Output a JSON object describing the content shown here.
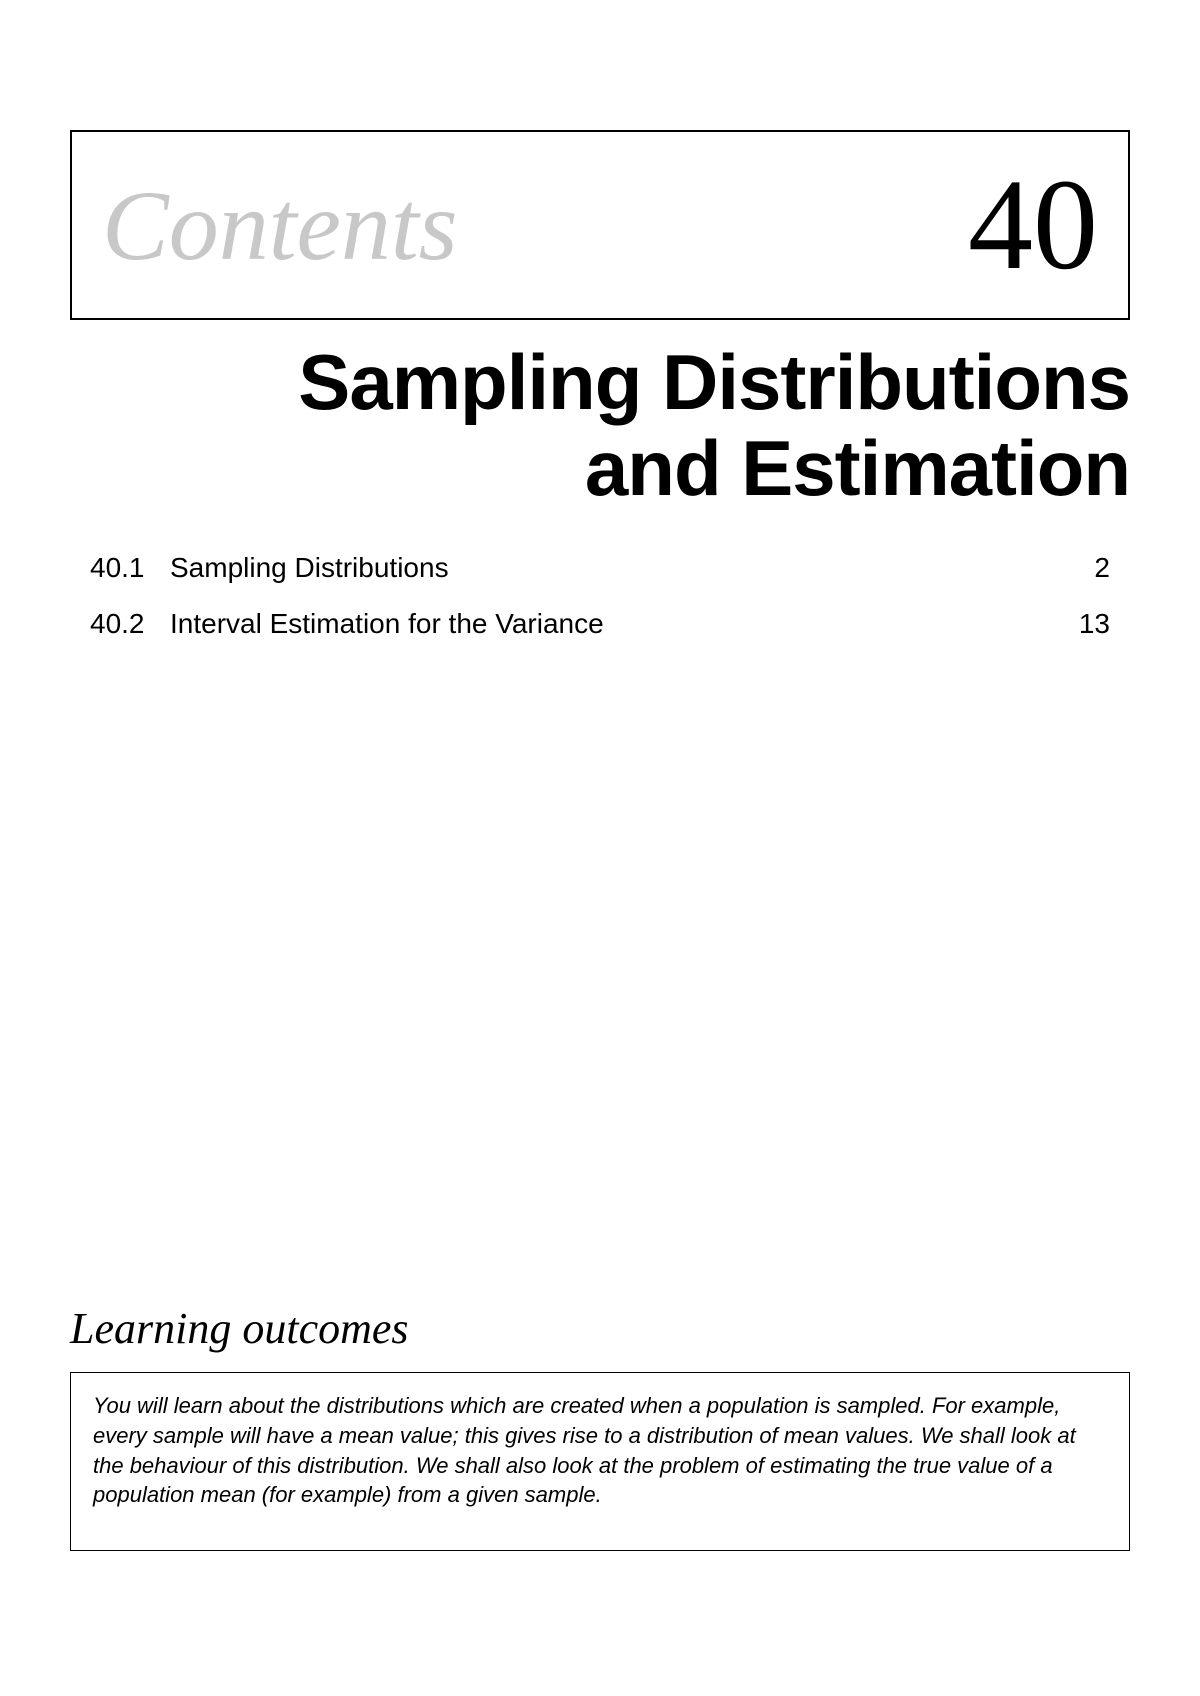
{
  "header": {
    "contents_label": "Contents",
    "chapter_number": "40"
  },
  "title": {
    "line1": "Sampling Distributions",
    "line2": "and Estimation"
  },
  "toc": [
    {
      "number": "40.1",
      "title": "Sampling Distributions",
      "page": "2"
    },
    {
      "number": "40.2",
      "title": "Interval Estimation for the Variance",
      "page": "13"
    }
  ],
  "learning": {
    "heading": "Learning outcomes",
    "body": "You will learn about the distributions which are created when a population is sampled. For example, every sample will have a mean value; this gives rise to a distribution of mean values. We shall look at the behaviour of this distribution.  We shall also look at the problem of estimating the true value of a population mean (for example) from a given sample."
  },
  "colors": {
    "text": "#000000",
    "contents_gray": "#c8c8c8",
    "background": "#ffffff",
    "border": "#000000"
  },
  "typography": {
    "contents_label_fontsize": 100,
    "chapter_number_fontsize": 130,
    "title_fontsize": 78,
    "toc_fontsize": 28,
    "learning_heading_fontsize": 44,
    "learning_body_fontsize": 22
  }
}
